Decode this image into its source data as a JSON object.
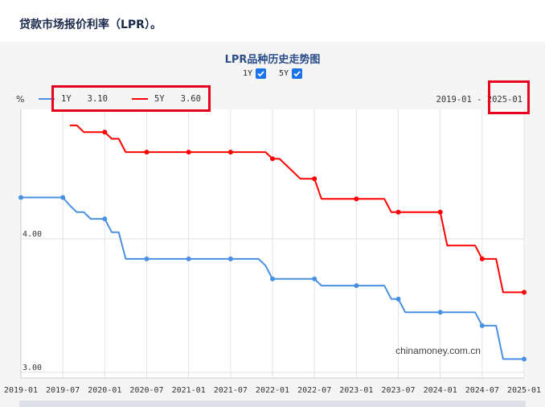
{
  "page": {
    "title": "贷款市场报价利率（LPR）。"
  },
  "toggles": [
    {
      "label": "1Y",
      "checked": true
    },
    {
      "label": "5Y",
      "checked": true
    }
  ],
  "legend": [
    {
      "name": "1Y",
      "value": "3.10",
      "color": "#4a90e2"
    },
    {
      "name": "5Y",
      "value": "3.60",
      "color": "#ff0000"
    }
  ],
  "range_label": "2019-01 - 2025-01",
  "watermark": "chinamoney.com.cn",
  "chart_data": {
    "type": "line",
    "title": "LPR品种历史走势图",
    "ylabel": "%",
    "y_ticks": [
      {
        "value": 3.0,
        "label": "3.00"
      },
      {
        "value": 4.0,
        "label": "4.00"
      }
    ],
    "x_ticks": [
      "2019-01",
      "2019-07",
      "2020-01",
      "2020-07",
      "2021-01",
      "2021-07",
      "2022-01",
      "2022-07",
      "2023-01",
      "2023-07",
      "2024-01",
      "2024-07",
      "2025-01"
    ],
    "x_range": [
      "2019-01",
      "2025-01"
    ],
    "grid": true,
    "legend_position": "top-left",
    "series": [
      {
        "name": "1Y",
        "color": "#4a90e2",
        "values": [
          [
            "2019-01",
            4.31
          ],
          [
            "2019-07",
            4.31
          ],
          [
            "2019-08",
            4.25
          ],
          [
            "2019-09",
            4.2
          ],
          [
            "2019-10",
            4.2
          ],
          [
            "2019-11",
            4.15
          ],
          [
            "2019-12",
            4.15
          ],
          [
            "2020-01",
            4.15
          ],
          [
            "2020-02",
            4.05
          ],
          [
            "2020-03",
            4.05
          ],
          [
            "2020-04",
            3.85
          ],
          [
            "2020-07",
            3.85
          ],
          [
            "2021-01",
            3.85
          ],
          [
            "2021-07",
            3.85
          ],
          [
            "2021-11",
            3.85
          ],
          [
            "2021-12",
            3.8
          ],
          [
            "2022-01",
            3.7
          ],
          [
            "2022-07",
            3.7
          ],
          [
            "2022-08",
            3.65
          ],
          [
            "2023-01",
            3.65
          ],
          [
            "2023-05",
            3.65
          ],
          [
            "2023-06",
            3.55
          ],
          [
            "2023-07",
            3.55
          ],
          [
            "2023-08",
            3.45
          ],
          [
            "2024-01",
            3.45
          ],
          [
            "2024-06",
            3.45
          ],
          [
            "2024-07",
            3.35
          ],
          [
            "2024-09",
            3.35
          ],
          [
            "2024-10",
            3.1
          ],
          [
            "2025-01",
            3.1
          ]
        ]
      },
      {
        "name": "5Y",
        "color": "#ff0000",
        "values": [
          [
            "2019-08",
            4.85
          ],
          [
            "2019-09",
            4.85
          ],
          [
            "2019-10",
            4.8
          ],
          [
            "2019-11",
            4.8
          ],
          [
            "2019-12",
            4.8
          ],
          [
            "2020-01",
            4.8
          ],
          [
            "2020-02",
            4.75
          ],
          [
            "2020-03",
            4.75
          ],
          [
            "2020-04",
            4.65
          ],
          [
            "2020-07",
            4.65
          ],
          [
            "2021-01",
            4.65
          ],
          [
            "2021-07",
            4.65
          ],
          [
            "2021-12",
            4.65
          ],
          [
            "2022-01",
            4.6
          ],
          [
            "2022-02",
            4.6
          ],
          [
            "2022-05",
            4.45
          ],
          [
            "2022-07",
            4.45
          ],
          [
            "2022-08",
            4.3
          ],
          [
            "2023-01",
            4.3
          ],
          [
            "2023-05",
            4.3
          ],
          [
            "2023-06",
            4.2
          ],
          [
            "2023-07",
            4.2
          ],
          [
            "2024-01",
            4.2
          ],
          [
            "2024-02",
            3.95
          ],
          [
            "2024-06",
            3.95
          ],
          [
            "2024-07",
            3.85
          ],
          [
            "2024-09",
            3.85
          ],
          [
            "2024-10",
            3.6
          ],
          [
            "2025-01",
            3.6
          ]
        ]
      }
    ],
    "markers": {
      "1Y": [
        "2019-01",
        "2019-07",
        "2020-01",
        "2020-07",
        "2021-01",
        "2021-07",
        "2022-01",
        "2022-07",
        "2023-01",
        "2023-07",
        "2024-01",
        "2024-07",
        "2025-01"
      ],
      "5Y": [
        "2020-01",
        "2020-07",
        "2021-01",
        "2021-07",
        "2022-01",
        "2022-07",
        "2023-01",
        "2023-07",
        "2024-01",
        "2024-07",
        "2025-01"
      ]
    }
  }
}
